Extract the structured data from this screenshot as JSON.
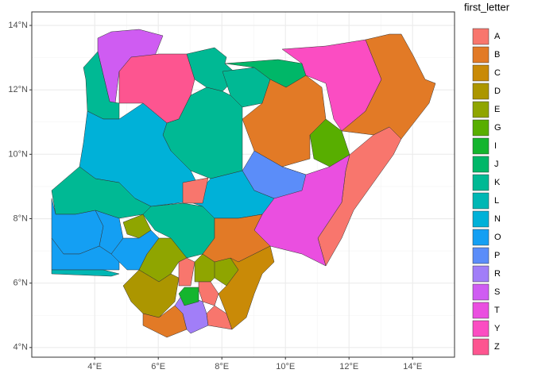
{
  "chart_data": {
    "type": "map",
    "xlim": [
      2.02,
      15.32
    ],
    "ylim": [
      3.7,
      14.42
    ],
    "xticks": [
      {
        "value": 4,
        "label": "4°E"
      },
      {
        "value": 6,
        "label": "6°E"
      },
      {
        "value": 8,
        "label": "8°E"
      },
      {
        "value": 10,
        "label": "10°E"
      },
      {
        "value": 12,
        "label": "12°E"
      },
      {
        "value": 14,
        "label": "14°E"
      }
    ],
    "yticks": [
      {
        "value": 4,
        "label": "4°N"
      },
      {
        "value": 6,
        "label": "6°N"
      },
      {
        "value": 8,
        "label": "8°N"
      },
      {
        "value": 10,
        "label": "10°N"
      },
      {
        "value": 12,
        "label": "12°N"
      },
      {
        "value": 14,
        "label": "14°N"
      }
    ],
    "grid": true,
    "legend_title": "first_letter",
    "series": [
      {
        "name": "A",
        "color": "#F8766D"
      },
      {
        "name": "B",
        "color": "#E27A26"
      },
      {
        "name": "C",
        "color": "#C98A07"
      },
      {
        "name": "D",
        "color": "#AC9600"
      },
      {
        "name": "E",
        "color": "#8FA500"
      },
      {
        "name": "G",
        "color": "#58AE00"
      },
      {
        "name": "I",
        "color": "#14B52E"
      },
      {
        "name": "J",
        "color": "#00B768"
      },
      {
        "name": "K",
        "color": "#00B994"
      },
      {
        "name": "L",
        "color": "#00B7B4"
      },
      {
        "name": "N",
        "color": "#00B1D8"
      },
      {
        "name": "O",
        "color": "#149FF3"
      },
      {
        "name": "P",
        "color": "#5B8DF9"
      },
      {
        "name": "R",
        "color": "#A17EF8"
      },
      {
        "name": "S",
        "color": "#CF5CF2"
      },
      {
        "name": "T",
        "color": "#EA4FE0"
      },
      {
        "name": "Y",
        "color": "#FB4DC2"
      },
      {
        "name": "Z",
        "color": "#FD5590"
      }
    ]
  }
}
